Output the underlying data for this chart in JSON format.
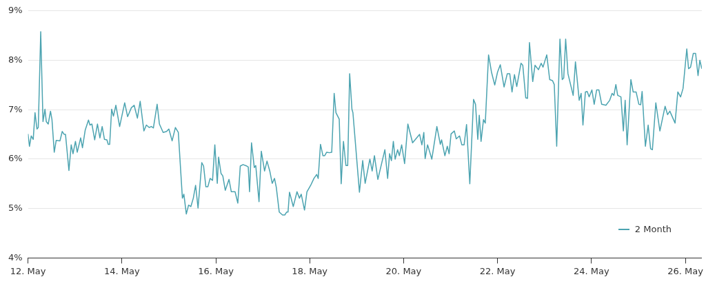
{
  "chart_data": {
    "type": "line",
    "xlim": [
      "--05-12",
      "--05-26T08:25"
    ],
    "ylim": [
      4,
      9
    ],
    "xticks": [
      {
        "value": "--05-12",
        "label": "12. May"
      },
      {
        "value": "--05-14",
        "label": "14. May"
      },
      {
        "value": "--05-16",
        "label": "16. May"
      },
      {
        "value": "--05-18",
        "label": "18. May"
      },
      {
        "value": "--05-20",
        "label": "20. May"
      },
      {
        "value": "--05-22",
        "label": "22. May"
      },
      {
        "value": "--05-24",
        "label": "24. May"
      },
      {
        "value": "--05-26",
        "label": "26. May"
      }
    ],
    "yticks": [
      {
        "value": 4,
        "label": "4%"
      },
      {
        "value": 5,
        "label": "5%"
      },
      {
        "value": 6,
        "label": "6%"
      },
      {
        "value": 7,
        "label": "7%"
      },
      {
        "value": 8,
        "label": "8%"
      },
      {
        "value": 9,
        "label": "9%"
      }
    ],
    "grid": "y",
    "legend": "bottom right",
    "marker": "none",
    "line_style": "solid",
    "series": [
      {
        "name": "2 Month",
        "color": "#4ba3b0",
        "x": [
          "--05-12T00:00",
          "--05-12T00:45",
          "--05-12T01:40",
          "--05-12T02:40",
          "--05-12T03:35",
          "--05-12T04:35",
          "--05-12T05:15",
          "--05-12T06:30",
          "--05-12T07:40",
          "--05-12T08:40",
          "--05-12T09:20",
          "--05-12T10:20",
          "--05-12T11:30",
          "--05-12T12:15",
          "--05-12T13:25",
          "--05-12T14:25",
          "--05-12T16:20",
          "--05-12T17:30",
          "--05-12T18:30",
          "--05-12T19:10",
          "--05-12T20:55",
          "--05-12T22:05",
          "--05-12T23:00",
          "--05-13T00:15",
          "--05-13T01:10",
          "--05-13T02:55",
          "--05-13T03:50",
          "--05-13T05:15",
          "--05-13T06:55",
          "--05-13T07:40",
          "--05-13T08:40",
          "--05-13T10:05",
          "--05-13T11:30",
          "--05-13T12:45",
          "--05-13T13:55",
          "--05-13T15:05",
          "--05-13T16:20",
          "--05-13T17:00",
          "--05-13T17:45",
          "--05-13T18:45",
          "--05-13T19:40",
          "--05-13T20:55",
          "--05-13T22:50",
          "--05-14T01:25",
          "--05-14T02:55",
          "--05-14T04:50",
          "--05-14T06:15",
          "--05-14T07:55",
          "--05-14T09:20",
          "--05-14T11:15",
          "--05-14T12:30",
          "--05-14T13:55",
          "--05-14T15:05",
          "--05-14T16:05",
          "--05-14T18:00",
          "--05-14T19:10",
          "--05-14T21:05",
          "--05-14T22:50",
          "--05-15T00:00",
          "--05-15T01:40",
          "--05-15T03:20",
          "--05-15T04:50",
          "--05-15T06:55",
          "--05-15T07:40",
          "--05-15T08:55",
          "--05-15T10:05",
          "--05-15T11:15",
          "--05-15T12:30",
          "--05-15T13:40",
          "--05-15T14:55",
          "--05-15T16:50",
          "--05-15T17:45",
          "--05-15T18:55",
          "--05-15T19:55",
          "--05-15T21:05",
          "--05-15T22:20",
          "--05-15T23:30",
          "--05-16T00:45",
          "--05-16T01:25",
          "--05-16T02:40",
          "--05-16T03:35",
          "--05-16T04:50",
          "--05-16T06:45",
          "--05-16T07:55",
          "--05-16T09:50",
          "--05-16T11:15",
          "--05-16T12:30",
          "--05-16T13:55",
          "--05-16T15:50",
          "--05-16T16:35",
          "--05-16T17:15",
          "--05-16T18:15",
          "--05-16T19:40",
          "--05-16T20:25",
          "--05-16T22:05",
          "--05-16T23:15",
          "--05-17T00:55",
          "--05-17T02:10",
          "--05-17T03:35",
          "--05-17T04:50",
          "--05-17T06:00",
          "--05-17T06:55",
          "--05-17T08:25",
          "--05-17T10:05",
          "--05-17T11:15",
          "--05-17T12:15",
          "--05-17T12:55",
          "--05-17T13:40",
          "--05-17T15:35",
          "--05-17T17:30",
          "--05-17T18:45",
          "--05-17T19:40",
          "--05-17T21:20",
          "--05-17T22:35",
          "--05-18T00:30",
          "--05-18T02:10",
          "--05-18T03:35",
          "--05-18T04:20",
          "--05-18T05:30",
          "--05-18T06:45",
          "--05-18T07:40",
          "--05-18T08:40",
          "--05-18T10:05",
          "--05-18T11:15",
          "--05-18T12:30",
          "--05-18T13:25",
          "--05-18T15:05",
          "--05-18T16:05",
          "--05-18T17:15",
          "--05-18T18:30",
          "--05-18T19:25",
          "--05-18T20:25",
          "--05-18T21:35",
          "--05-18T22:05",
          "--05-19T01:25",
          "--05-19T03:05",
          "--05-19T04:20",
          "--05-19T06:45",
          "--05-19T07:55",
          "--05-19T09:05",
          "--05-19T10:50",
          "--05-19T14:25",
          "--05-19T15:50",
          "--05-19T16:50",
          "--05-19T17:45",
          "--05-19T18:45",
          "--05-19T19:40",
          "--05-19T20:55",
          "--05-19T21:50",
          "--05-19T23:00",
          "--05-20T00:30",
          "--05-20T02:10",
          "--05-20T04:35",
          "--05-20T08:10",
          "--05-20T09:20",
          "--05-20T10:20",
          "--05-20T11:00",
          "--05-20T12:15",
          "--05-20T14:25",
          "--05-20T17:00",
          "--05-20T18:45",
          "--05-20T19:25",
          "--05-20T21:05",
          "--05-20T22:20",
          "--05-20T23:15",
          "--05-21T00:15",
          "--05-21T01:55",
          "--05-21T02:55",
          "--05-21T04:35",
          "--05-21T05:45",
          "--05-21T06:55",
          "--05-21T08:10",
          "--05-21T09:50",
          "--05-21T11:45",
          "--05-21T12:45",
          "--05-21T13:55",
          "--05-21T14:40",
          "--05-21T15:35",
          "--05-21T16:50",
          "--05-21T17:45",
          "--05-21T19:25",
          "--05-21T20:55",
          "--05-21T22:35",
          "--05-22T00:00",
          "--05-22T01:25",
          "--05-22T03:20",
          "--05-22T05:00",
          "--05-22T06:15",
          "--05-22T07:25",
          "--05-22T08:40",
          "--05-22T09:50",
          "--05-22T12:00",
          "--05-22T12:55",
          "--05-22T14:25",
          "--05-22T15:20",
          "--05-22T16:20",
          "--05-22T18:00",
          "--05-22T19:10",
          "--05-22T20:55",
          "--05-22T22:20",
          "--05-22T23:15",
          "--05-23T01:10",
          "--05-23T02:40",
          "--05-23T04:05",
          "--05-23T05:00",
          "--05-23T06:15",
          "--05-23T07:55",
          "--05-23T09:05",
          "--05-23T09:50",
          "--05-23T10:50",
          "--05-23T12:00",
          "--05-23T14:40",
          "--05-23T15:50",
          "--05-23T17:45",
          "--05-23T18:45",
          "--05-23T19:40",
          "--05-23T20:55",
          "--05-23T21:50",
          "--05-23T22:50",
          "--05-24T00:15",
          "--05-24T01:25",
          "--05-24T02:40",
          "--05-24T03:50",
          "--05-24T05:15",
          "--05-24T07:25",
          "--05-24T09:20",
          "--05-24T10:35",
          "--05-24T11:30",
          "--05-24T12:30",
          "--05-24T13:25",
          "--05-24T15:05",
          "--05-24T16:20",
          "--05-24T17:15",
          "--05-24T18:15",
          "--05-24T20:10",
          "--05-24T21:20",
          "--05-24T22:50",
          "--05-25T00:15",
          "--05-25T01:10",
          "--05-25T01:55",
          "--05-25T03:35",
          "--05-25T05:00",
          "--05-25T06:15",
          "--05-25T07:10",
          "--05-25T08:55",
          "--05-25T11:00",
          "--05-25T13:40",
          "--05-25T14:55",
          "--05-25T16:05",
          "--05-25T18:45",
          "--05-25T20:10",
          "--05-25T21:35",
          "--05-25T22:50",
          "--05-26T00:45",
          "--05-26T01:40",
          "--05-26T02:40",
          "--05-26T04:05",
          "--05-26T05:15",
          "--05-26T06:30",
          "--05-26T07:25",
          "--05-26T08:25"
        ],
        "values": [
          6.51,
          6.26,
          6.47,
          6.4,
          6.94,
          6.61,
          6.64,
          8.58,
          6.76,
          7.01,
          6.76,
          6.71,
          6.97,
          6.8,
          6.14,
          6.38,
          6.37,
          6.56,
          6.5,
          6.5,
          5.77,
          6.29,
          6.11,
          6.36,
          6.14,
          6.43,
          6.23,
          6.59,
          6.79,
          6.69,
          6.71,
          6.39,
          6.71,
          6.43,
          6.66,
          6.4,
          6.39,
          6.3,
          6.3,
          7.01,
          6.87,
          7.09,
          6.66,
          7.14,
          6.86,
          7.04,
          7.09,
          6.83,
          7.17,
          6.57,
          6.69,
          6.64,
          6.66,
          6.63,
          7.11,
          6.71,
          6.54,
          6.56,
          6.61,
          6.37,
          6.64,
          6.54,
          5.21,
          5.29,
          4.89,
          5.07,
          5.04,
          5.21,
          5.47,
          5.01,
          5.93,
          5.86,
          5.44,
          5.44,
          5.61,
          5.57,
          6.29,
          5.51,
          6.04,
          5.71,
          5.66,
          5.37,
          5.59,
          5.34,
          5.34,
          5.11,
          5.86,
          5.89,
          5.86,
          5.84,
          5.34,
          6.33,
          5.83,
          5.87,
          5.14,
          6.16,
          5.76,
          5.96,
          5.76,
          5.51,
          5.61,
          5.43,
          4.93,
          4.87,
          4.87,
          4.93,
          4.93,
          5.33,
          5.04,
          5.34,
          5.21,
          5.29,
          4.97,
          5.34,
          5.47,
          5.61,
          5.69,
          5.61,
          6.3,
          6.07,
          6.07,
          6.14,
          6.13,
          6.14,
          7.33,
          6.94,
          6.81,
          5.5,
          6.36,
          5.87,
          5.87,
          7.73,
          7.01,
          6.94,
          5.33,
          5.97,
          5.51,
          6.0,
          5.76,
          6.07,
          5.59,
          6.19,
          5.61,
          6.11,
          5.97,
          6.36,
          6.0,
          6.19,
          6.07,
          6.29,
          5.91,
          6.71,
          6.33,
          6.5,
          6.29,
          6.54,
          6.01,
          6.29,
          6.0,
          6.66,
          6.3,
          6.39,
          6.07,
          6.26,
          6.11,
          6.51,
          6.57,
          6.41,
          6.47,
          6.29,
          6.29,
          6.7,
          5.5,
          7.21,
          7.11,
          6.4,
          6.89,
          6.36,
          6.8,
          6.73,
          8.11,
          7.76,
          7.5,
          7.76,
          7.91,
          7.46,
          7.73,
          7.73,
          7.36,
          7.71,
          7.47,
          7.94,
          7.9,
          7.24,
          7.23,
          8.36,
          7.57,
          7.9,
          7.81,
          7.94,
          7.86,
          8.11,
          7.61,
          7.59,
          7.51,
          6.26,
          8.43,
          7.61,
          7.64,
          8.43,
          7.73,
          7.29,
          7.97,
          7.19,
          7.33,
          6.69,
          7.36,
          7.37,
          7.26,
          7.4,
          7.11,
          7.4,
          7.4,
          7.11,
          7.09,
          7.19,
          7.33,
          7.29,
          7.51,
          7.29,
          7.26,
          6.57,
          7.19,
          6.29,
          7.61,
          7.36,
          7.36,
          7.11,
          7.1,
          7.37,
          6.26,
          6.69,
          6.21,
          6.19,
          7.14,
          6.57,
          7.07,
          6.9,
          6.97,
          6.73,
          7.36,
          7.26,
          7.43,
          8.23,
          7.83,
          7.86,
          8.14,
          8.14,
          7.69,
          8.0,
          7.83
        ]
      }
    ]
  }
}
